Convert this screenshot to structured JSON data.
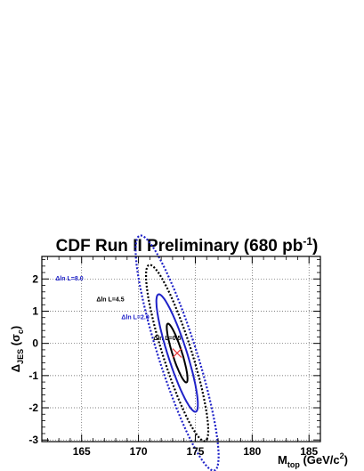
{
  "chart_data": {
    "type": "contour",
    "title": "CDF Run II Preliminary (680 pb",
    "title_sup": "-1",
    "title_end": ")",
    "xlabel": "M",
    "xlabel_sub": "top",
    "xlabel_unit": " (GeV/c",
    "xlabel_unit_sup": "2",
    "xlabel_unit_end": ")",
    "ylabel": "Δ",
    "ylabel_sub": "JES",
    "ylabel_unit": " (σ",
    "ylabel_unit_sub": "c",
    "ylabel_unit_end": ")",
    "xlim": [
      161.5,
      186.0
    ],
    "ylim": [
      -3.05,
      2.7
    ],
    "xticks": [
      "165",
      "170",
      "175",
      "180",
      "185"
    ],
    "yticks": [
      "2",
      "1",
      "0",
      "-1",
      "-2",
      "-3"
    ],
    "grid": true,
    "best_fit": {
      "x": 173.4,
      "y": -0.3,
      "color": "#e83a3a",
      "marker": "x"
    },
    "contours": [
      {
        "label": "Δln L=0.5",
        "value": 0.5,
        "color": "#000000",
        "style": "solid",
        "center_x": 173.4,
        "center_y": -0.3,
        "semi_major": 1.25,
        "semi_minor": 0.32,
        "label_at": [
          171.3,
          0.1
        ]
      },
      {
        "label": "Δln L=2.0",
        "value": 2.0,
        "color": "#1f22c8",
        "style": "solid",
        "center_x": 173.4,
        "center_y": -0.3,
        "semi_major": 2.5,
        "semi_minor": 0.64,
        "label_at": [
          168.5,
          0.75
        ]
      },
      {
        "label": "Δln L=4.5",
        "value": 4.5,
        "color": "#000000",
        "style": "dotted",
        "center_x": 173.4,
        "center_y": -0.3,
        "semi_major": 3.75,
        "semi_minor": 0.96,
        "label_at": [
          166.3,
          1.3
        ]
      },
      {
        "label": "Δln L=8.0",
        "value": 8.0,
        "color": "#1f22c8",
        "style": "dotted",
        "center_x": 173.4,
        "center_y": -0.3,
        "semi_major": 5.0,
        "semi_minor": 1.28,
        "label_at": [
          162.7,
          1.95
        ]
      }
    ]
  }
}
